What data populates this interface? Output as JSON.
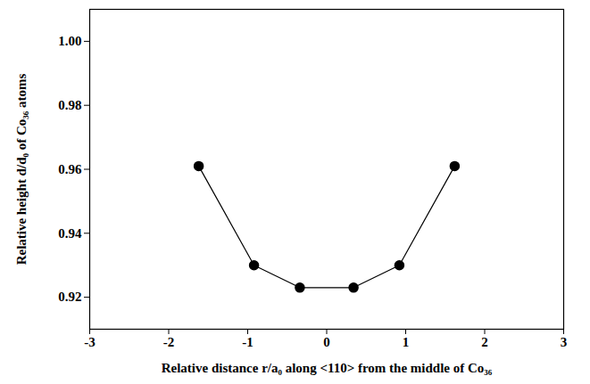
{
  "chart_data": {
    "type": "line",
    "xlabel": "Relative distance r/a₀ along <110> from the middle of Co₃₆",
    "ylabel": "Relative height d/d₀ of Co₃₆ atoms",
    "x": [
      -1.62,
      -0.92,
      -0.34,
      0.34,
      0.92,
      1.62
    ],
    "values": [
      0.961,
      0.93,
      0.923,
      0.923,
      0.93,
      0.961
    ],
    "color": "#000000",
    "marker": "circle",
    "line_style": "solid",
    "xlim": [
      -3,
      3
    ],
    "xticks": [
      -3,
      -2,
      -1,
      0,
      1,
      2,
      3
    ],
    "ylim": [
      0.91,
      1.01
    ],
    "yticks": [
      0.92,
      0.94,
      0.96,
      0.98,
      {
        "value": 1,
        "label": "1.00"
      }
    ],
    "grid": false
  }
}
